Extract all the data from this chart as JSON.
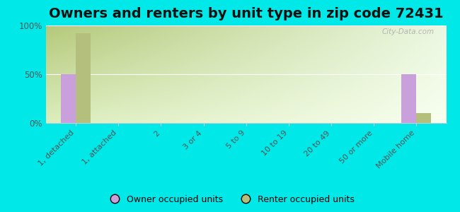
{
  "title": "Owners and renters by unit type in zip code 72431",
  "categories": [
    "1, detached",
    "1, attached",
    "2",
    "3 or 4",
    "5 to 9",
    "10 to 19",
    "20 to 49",
    "50 or more",
    "Mobile home"
  ],
  "owner_values": [
    50,
    0,
    0,
    0,
    0,
    0,
    0,
    0,
    50
  ],
  "renter_values": [
    92,
    0,
    0,
    0,
    0,
    0,
    0,
    0,
    10
  ],
  "owner_color": "#c9a0dc",
  "renter_color": "#b5bf7d",
  "background_color": "#00e8e8",
  "grad_top_left": "#b5c97a",
  "grad_bottom_right": "#f0f8e8",
  "ylim": [
    0,
    100
  ],
  "yticks": [
    0,
    50,
    100
  ],
  "ytick_labels": [
    "0%",
    "50%",
    "100%"
  ],
  "title_fontsize": 14,
  "legend_owner": "Owner occupied units",
  "legend_renter": "Renter occupied units",
  "watermark": "City-Data.com"
}
